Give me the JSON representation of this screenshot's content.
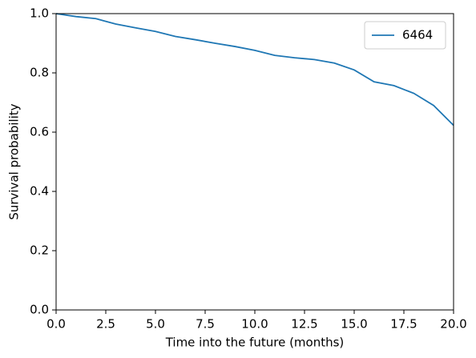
{
  "chart_data": {
    "type": "line",
    "xlabel": "Time into the future (months)",
    "ylabel": "Survival probability",
    "x": [
      0,
      1,
      2,
      3,
      4,
      5,
      6,
      7,
      8,
      9,
      10,
      11,
      12,
      13,
      14,
      15,
      16,
      17,
      18,
      19,
      20
    ],
    "series": [
      {
        "name": "6464",
        "color": "#1f77b4",
        "values": [
          1.0,
          0.99,
          0.983,
          0.965,
          0.952,
          0.94,
          0.923,
          0.912,
          0.9,
          0.889,
          0.876,
          0.859,
          0.851,
          0.845,
          0.833,
          0.81,
          0.77,
          0.757,
          0.731,
          0.69,
          0.623
        ]
      }
    ],
    "xlim": [
      0,
      20
    ],
    "ylim": [
      0,
      1
    ],
    "xticks": [
      {
        "value": 0,
        "label": "0.0"
      },
      2.5,
      {
        "value": 5,
        "label": "5.0"
      },
      7.5,
      {
        "value": 10,
        "label": "10.0"
      },
      12.5,
      {
        "value": 15,
        "label": "15.0"
      },
      17.5,
      {
        "value": 20,
        "label": "20.0"
      }
    ],
    "yticks": [
      {
        "value": 0,
        "label": "0.0"
      },
      0.2,
      0.4,
      0.6,
      0.8,
      {
        "value": 1,
        "label": "1.0"
      }
    ],
    "legend": "upper right",
    "grid": false
  }
}
